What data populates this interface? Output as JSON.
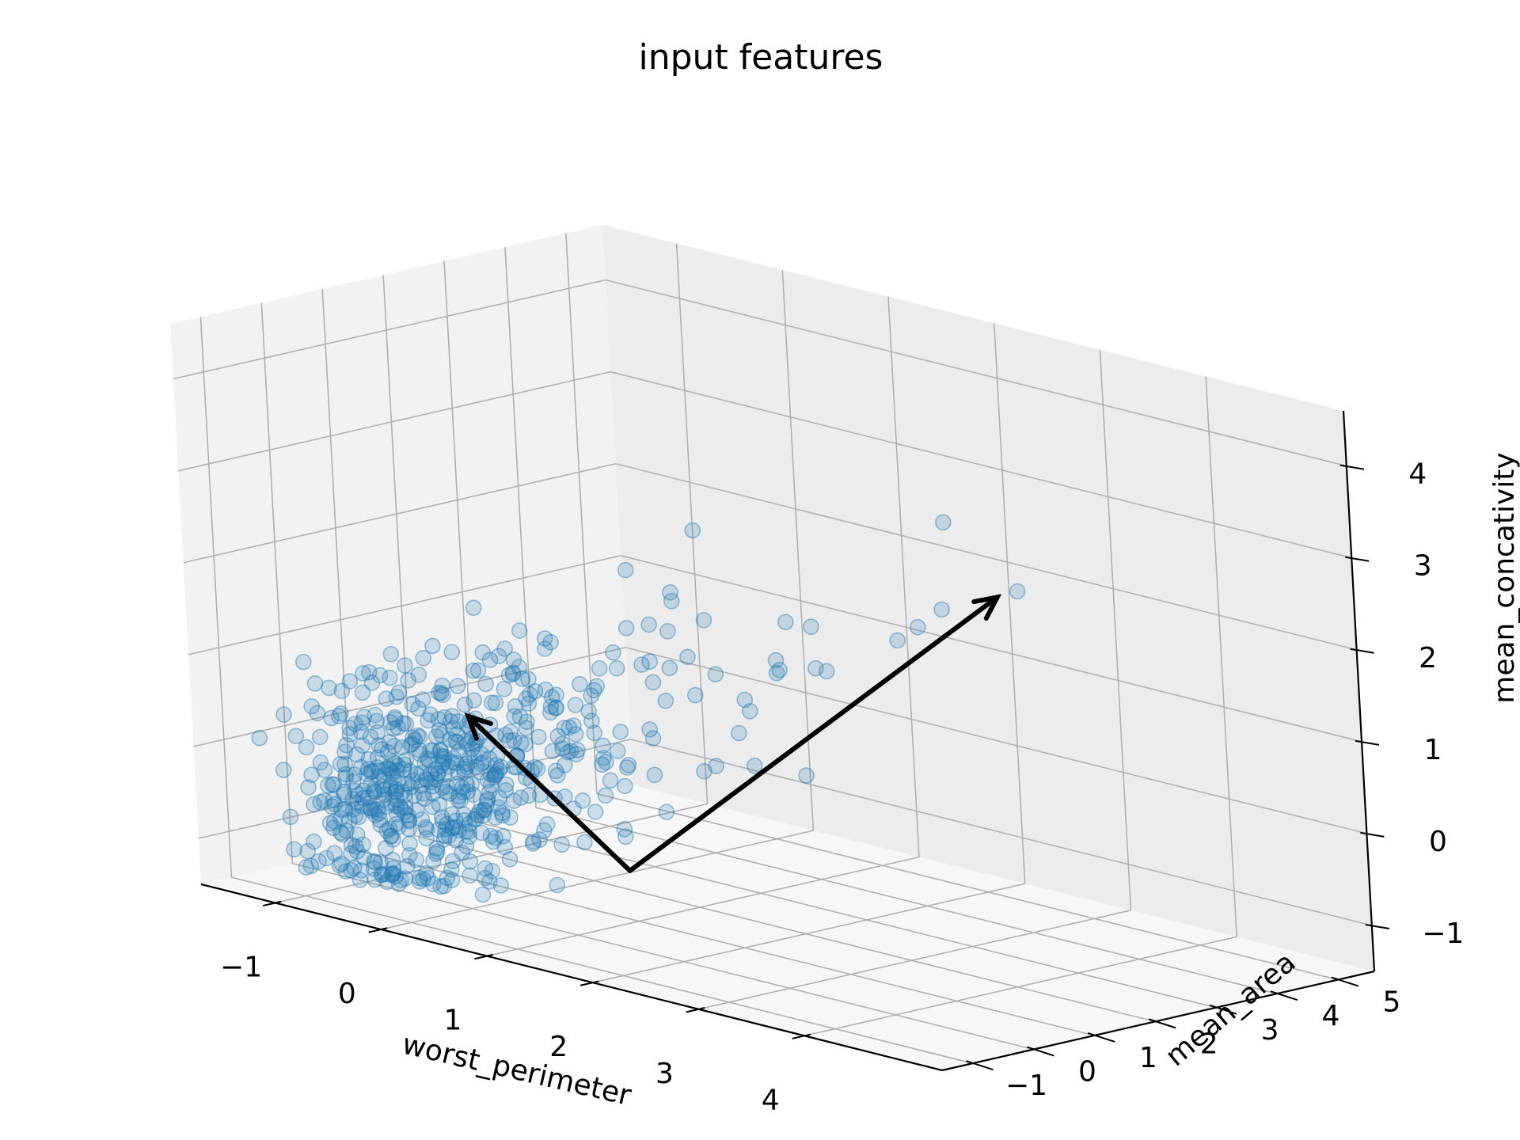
{
  "chart_data": {
    "type": "scatter",
    "projection": "3d",
    "title": "input features",
    "xlabel": "worst_perimeter",
    "ylabel": "mean_area",
    "zlabel": "mean_concativity",
    "xlim": [
      -1.7,
      5.3
    ],
    "ylim": [
      -1.5,
      5.6
    ],
    "zlim": [
      -1.5,
      4.6
    ],
    "xticks": [
      -1,
      0,
      1,
      2,
      3,
      4
    ],
    "xtick_labels": [
      "−1",
      "0",
      "1",
      "2",
      "3",
      "4"
    ],
    "yticks": [
      -1,
      0,
      1,
      2,
      3,
      4,
      5
    ],
    "ytick_labels": [
      "−1",
      "0",
      "1",
      "2",
      "3",
      "4",
      "5"
    ],
    "zticks": [
      -1,
      0,
      1,
      2,
      3,
      4
    ],
    "ztick_labels": [
      "−1",
      "0",
      "1",
      "2",
      "3",
      "4"
    ],
    "grid": true,
    "marker_color": "#1f77b4",
    "marker_alpha": 0.2,
    "arrow_color": "#000000",
    "arrows": [
      {
        "from": [
          0.88,
          1.1,
          -1.0
        ],
        "to": [
          2.83,
          4.0,
          2.1
        ]
      },
      {
        "from": [
          0.88,
          1.1,
          -1.0
        ],
        "to": [
          -0.47,
          0.9,
          0.32
        ]
      }
    ],
    "points_generator": {
      "count": 569,
      "seed": 7
    }
  }
}
